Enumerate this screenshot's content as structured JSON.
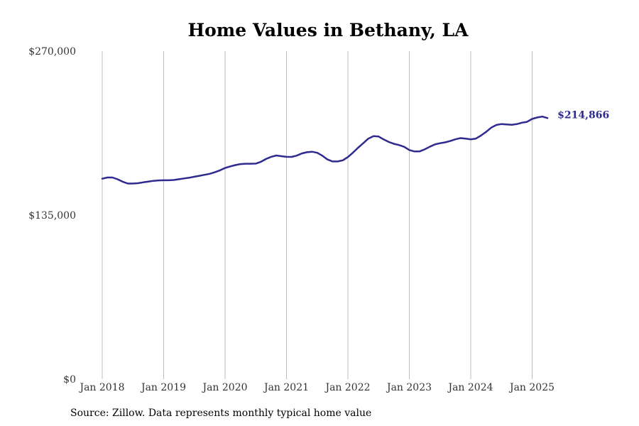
{
  "chart_data": {
    "type": "line",
    "title": "Home Values in Bethany, LA",
    "xlabel": "",
    "ylabel": "",
    "ylim": [
      0,
      270000
    ],
    "y_ticks": [
      {
        "value": 0,
        "label": "$0"
      },
      {
        "value": 135000,
        "label": "$135,000"
      },
      {
        "value": 270000,
        "label": "$270,000"
      }
    ],
    "x_ticks": [
      {
        "value": 2018.0,
        "label": "Jan 2018"
      },
      {
        "value": 2019.0,
        "label": "Jan 2019"
      },
      {
        "value": 2020.0,
        "label": "Jan 2020"
      },
      {
        "value": 2021.0,
        "label": "Jan 2021"
      },
      {
        "value": 2022.0,
        "label": "Jan 2022"
      },
      {
        "value": 2023.0,
        "label": "Jan 2023"
      },
      {
        "value": 2024.0,
        "label": "Jan 2024"
      },
      {
        "value": 2025.0,
        "label": "Jan 2025"
      }
    ],
    "grid": "vertical",
    "line_color": "#2e2a8f",
    "series": [
      {
        "points": [
          [
            2018.0,
            165000
          ],
          [
            2018.083,
            166000
          ],
          [
            2018.167,
            166000
          ],
          [
            2018.25,
            164500
          ],
          [
            2018.333,
            162500
          ],
          [
            2018.417,
            161000
          ],
          [
            2018.5,
            161000
          ],
          [
            2018.583,
            161300
          ],
          [
            2018.667,
            162000
          ],
          [
            2018.75,
            162600
          ],
          [
            2018.833,
            163200
          ],
          [
            2018.917,
            163600
          ],
          [
            2019.0,
            163700
          ],
          [
            2019.083,
            163700
          ],
          [
            2019.167,
            163900
          ],
          [
            2019.25,
            164600
          ],
          [
            2019.333,
            165200
          ],
          [
            2019.417,
            165800
          ],
          [
            2019.5,
            166600
          ],
          [
            2019.583,
            167400
          ],
          [
            2019.667,
            168200
          ],
          [
            2019.75,
            169000
          ],
          [
            2019.833,
            170300
          ],
          [
            2019.917,
            171900
          ],
          [
            2020.0,
            173800
          ],
          [
            2020.083,
            175100
          ],
          [
            2020.167,
            176200
          ],
          [
            2020.25,
            177000
          ],
          [
            2020.333,
            177300
          ],
          [
            2020.417,
            177300
          ],
          [
            2020.5,
            177400
          ],
          [
            2020.583,
            178900
          ],
          [
            2020.667,
            181200
          ],
          [
            2020.75,
            183000
          ],
          [
            2020.833,
            184100
          ],
          [
            2020.917,
            183500
          ],
          [
            2021.0,
            183000
          ],
          [
            2021.083,
            182900
          ],
          [
            2021.167,
            184000
          ],
          [
            2021.25,
            185800
          ],
          [
            2021.333,
            186800
          ],
          [
            2021.417,
            187200
          ],
          [
            2021.5,
            186300
          ],
          [
            2021.583,
            184000
          ],
          [
            2021.667,
            180800
          ],
          [
            2021.75,
            179200
          ],
          [
            2021.833,
            179200
          ],
          [
            2021.917,
            180100
          ],
          [
            2022.0,
            182800
          ],
          [
            2022.083,
            186500
          ],
          [
            2022.167,
            190500
          ],
          [
            2022.25,
            194200
          ],
          [
            2022.333,
            198000
          ],
          [
            2022.417,
            200000
          ],
          [
            2022.5,
            199700
          ],
          [
            2022.583,
            197300
          ],
          [
            2022.667,
            195200
          ],
          [
            2022.75,
            193700
          ],
          [
            2022.833,
            192700
          ],
          [
            2022.917,
            191200
          ],
          [
            2023.0,
            188600
          ],
          [
            2023.083,
            187400
          ],
          [
            2023.167,
            187400
          ],
          [
            2023.25,
            189100
          ],
          [
            2023.333,
            191300
          ],
          [
            2023.417,
            193200
          ],
          [
            2023.5,
            194200
          ],
          [
            2023.583,
            194900
          ],
          [
            2023.667,
            196000
          ],
          [
            2023.75,
            197400
          ],
          [
            2023.833,
            198400
          ],
          [
            2023.917,
            198000
          ],
          [
            2024.0,
            197400
          ],
          [
            2024.083,
            198000
          ],
          [
            2024.167,
            200500
          ],
          [
            2024.25,
            203500
          ],
          [
            2024.333,
            207000
          ],
          [
            2024.417,
            209200
          ],
          [
            2024.5,
            210000
          ],
          [
            2024.583,
            209700
          ],
          [
            2024.667,
            209400
          ],
          [
            2024.75,
            209900
          ],
          [
            2024.833,
            211100
          ],
          [
            2024.917,
            211800
          ],
          [
            2025.0,
            214200
          ],
          [
            2025.083,
            215400
          ],
          [
            2025.167,
            216100
          ],
          [
            2025.25,
            214866
          ]
        ]
      }
    ],
    "end_label": "$214,866"
  },
  "footer": {
    "source": "Source: Zillow. Data represents monthly typical home value"
  }
}
